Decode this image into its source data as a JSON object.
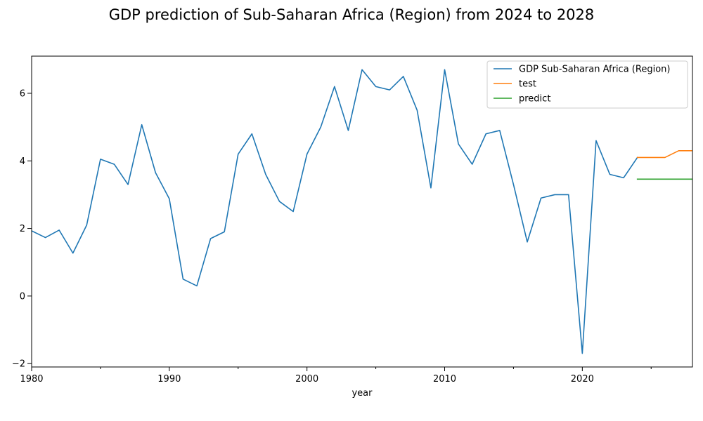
{
  "chart_data": {
    "type": "line",
    "title": "GDP prediction of Sub-Saharan Africa (Region)  from 2024 to 2028",
    "xlabel": "year",
    "ylabel": "",
    "xlim": [
      1980,
      2028
    ],
    "ylim": [
      -2.1,
      7.1
    ],
    "x_ticks": [
      1980,
      1990,
      2000,
      2010,
      2020
    ],
    "x_minor_ticks": [
      1985,
      1995,
      2005,
      2015,
      2025
    ],
    "y_ticks": [
      -2,
      0,
      2,
      4,
      6
    ],
    "grid": false,
    "legend_position": "top-right",
    "series": [
      {
        "name": "GDP Sub-Saharan Africa (Region)",
        "color": "#1f77b4",
        "x": [
          1980,
          1981,
          1982,
          1983,
          1984,
          1985,
          1986,
          1987,
          1988,
          1989,
          1990,
          1991,
          1992,
          1993,
          1994,
          1995,
          1996,
          1997,
          1998,
          1999,
          2000,
          2001,
          2002,
          2003,
          2004,
          2005,
          2006,
          2007,
          2008,
          2009,
          2010,
          2011,
          2012,
          2013,
          2014,
          2015,
          2016,
          2017,
          2018,
          2019,
          2020,
          2021,
          2022,
          2023,
          2024
        ],
        "y": [
          1.93,
          1.73,
          1.95,
          1.27,
          2.1,
          4.05,
          3.9,
          3.3,
          5.07,
          3.65,
          2.88,
          0.5,
          0.3,
          1.7,
          1.9,
          4.2,
          4.8,
          3.6,
          2.8,
          2.5,
          4.2,
          5.0,
          6.2,
          4.9,
          6.7,
          6.2,
          6.1,
          6.5,
          5.5,
          3.2,
          6.7,
          4.5,
          3.9,
          4.8,
          4.9,
          3.3,
          1.6,
          2.9,
          3.0,
          3.0,
          -1.7,
          4.6,
          3.6,
          3.5,
          4.1
        ]
      },
      {
        "name": "test",
        "color": "#ff7f0e",
        "x": [
          2024,
          2025,
          2026,
          2027,
          2028
        ],
        "y": [
          4.1,
          4.1,
          4.1,
          4.3,
          4.3
        ]
      },
      {
        "name": "predict",
        "color": "#2ca02c",
        "x": [
          2024,
          2025,
          2026,
          2027,
          2028
        ],
        "y": [
          3.46,
          3.46,
          3.46,
          3.46,
          3.46
        ]
      }
    ]
  }
}
